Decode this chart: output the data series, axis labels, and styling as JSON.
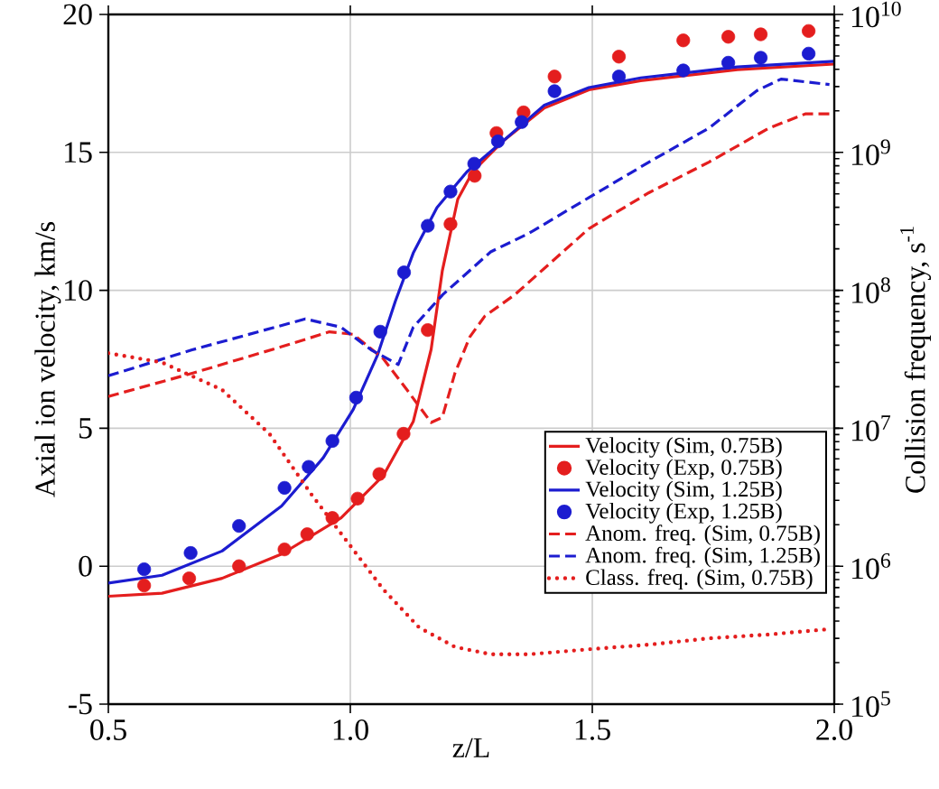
{
  "chart_data": {
    "type": "line",
    "xlabel": "z/L",
    "ylabel": "Axial ion velocity, km/s",
    "y2label": "Collision frequency, s$^{-1}$",
    "xlim": [
      0.5,
      2.0
    ],
    "ylim": [
      -5,
      20
    ],
    "y2lim": [
      100000,
      10000000000
    ],
    "log": "y2",
    "grid": true,
    "legend": "bottom right",
    "xticks": [
      0.5,
      {
        "value": 1,
        "label": "1.0"
      },
      1.5,
      {
        "value": 2,
        "label": "2.0"
      }
    ],
    "yticks": [
      -5,
      0,
      5,
      10,
      15,
      20
    ],
    "y2ticks": [
      {
        "value": 100000,
        "label": "10$^{5}$"
      },
      {
        "value": 1000000,
        "label": "10$^{6}$"
      },
      {
        "value": 10000000,
        "label": "10$^{7}$"
      },
      {
        "value": 100000000,
        "label": "10$^{8}$"
      },
      {
        "value": 1000000000,
        "label": "10$^{9}$"
      },
      {
        "value": 10000000000,
        "label": "10$^{10}$"
      }
    ],
    "series": [
      {
        "name": "Velocity (Sim, 0.75B)",
        "line_style": "solid",
        "color": "#e41e1e",
        "x": [
          0.5,
          0.611,
          0.735,
          0.858,
          0.981,
          1.068,
          1.13,
          1.167,
          1.19,
          1.222,
          1.253,
          1.315,
          1.4,
          1.493,
          1.6,
          1.8,
          2.0
        ],
        "values": [
          -1.09,
          -0.98,
          -0.44,
          0.44,
          1.75,
          3.28,
          5.24,
          7.86,
          10.7,
          13.3,
          14.3,
          15.4,
          16.6,
          17.27,
          17.6,
          18.0,
          18.2
        ]
      },
      {
        "name": "Velocity (Exp, 0.75B)",
        "type": "scatter",
        "marker": "circle",
        "color": "#e41e1e",
        "x": [
          0.574,
          0.667,
          0.77,
          0.864,
          0.911,
          0.963,
          1.015,
          1.06,
          1.11,
          1.16,
          1.207,
          1.257,
          1.302,
          1.358,
          1.422,
          1.555,
          1.688,
          1.781,
          1.848,
          1.947
        ],
        "values": [
          -0.7,
          -0.44,
          0.0,
          0.61,
          1.16,
          1.75,
          2.45,
          3.34,
          4.8,
          8.56,
          12.4,
          14.15,
          15.7,
          16.45,
          17.75,
          18.47,
          19.06,
          19.19,
          19.28,
          19.4
        ]
      },
      {
        "name": "Velocity (Sim, 1.25B)",
        "line_style": "solid",
        "color": "#1c1cd0",
        "x": [
          0.5,
          0.611,
          0.735,
          0.858,
          0.944,
          1.006,
          1.056,
          1.093,
          1.13,
          1.179,
          1.241,
          1.315,
          1.4,
          1.493,
          1.6,
          1.8,
          2.0
        ],
        "values": [
          -0.61,
          -0.33,
          0.55,
          2.18,
          3.93,
          5.68,
          7.64,
          9.6,
          11.35,
          13.0,
          14.3,
          15.4,
          16.7,
          17.35,
          17.7,
          18.1,
          18.3
        ]
      },
      {
        "name": "Velocity (Exp, 1.25B)",
        "type": "scatter",
        "marker": "circle",
        "color": "#1c1cd0",
        "x": [
          0.574,
          0.67,
          0.77,
          0.864,
          0.914,
          0.963,
          1.012,
          1.062,
          1.111,
          1.16,
          1.207,
          1.256,
          1.305,
          1.354,
          1.422,
          1.555,
          1.688,
          1.781,
          1.848,
          1.947
        ],
        "values": [
          -0.11,
          0.48,
          1.46,
          2.84,
          3.6,
          4.54,
          6.11,
          8.5,
          10.65,
          12.34,
          13.58,
          14.59,
          15.4,
          16.1,
          17.22,
          17.75,
          17.97,
          18.25,
          18.43,
          18.58
        ]
      },
      {
        "name": "Anom. freq. (Sim, 0.75B)",
        "axis": "y2",
        "line_style": "dashed",
        "color": "#e41e1e",
        "x": [
          0.5,
          0.673,
          0.858,
          0.957,
          1.006,
          1.068,
          1.117,
          1.167,
          1.19,
          1.216,
          1.247,
          1.278,
          1.34,
          1.493,
          1.617,
          1.741,
          1.865,
          1.94,
          1.99
        ],
        "values": [
          17000000.0,
          25000000.0,
          39000000.0,
          50000000.0,
          48000000.0,
          32000000.0,
          19000000.0,
          11000000.0,
          12000000.0,
          25000000.0,
          46000000.0,
          65000000.0,
          93000000.0,
          280000000.0,
          510000000.0,
          850000000.0,
          1500000000.0,
          1900000000.0,
          1900000000.0
        ]
      },
      {
        "name": "Anom. freq. (Sim, 1.25B)",
        "axis": "y2",
        "line_style": "dashed",
        "color": "#1c1cd0",
        "x": [
          0.5,
          0.673,
          0.907,
          0.981,
          1.043,
          1.099,
          1.13,
          1.191,
          1.29,
          1.37,
          1.493,
          1.617,
          1.741,
          1.84,
          1.89,
          1.99
        ],
        "values": [
          24000000.0,
          37000000.0,
          62000000.0,
          54000000.0,
          37000000.0,
          29000000.0,
          54000000.0,
          93000000.0,
          190000000.0,
          260000000.0,
          470000000.0,
          850000000.0,
          1500000000.0,
          2800000000.0,
          3400000000.0,
          3100000000.0
        ]
      },
      {
        "name": "Class. freq. (Sim, 0.75B)",
        "axis": "y2",
        "line_style": "dotted",
        "color": "#e41e1e",
        "x": [
          0.5,
          0.611,
          0.735,
          0.833,
          0.92,
          0.994,
          1.068,
          1.142,
          1.216,
          1.29,
          1.37,
          1.493,
          1.617,
          1.741,
          1.865,
          1.99
        ],
        "values": [
          35000000.0,
          30000000.0,
          19000000.0,
          9100000.0,
          3300000.0,
          1500000.0,
          680000.0,
          360000.0,
          260000.0,
          230000.0,
          230000.0,
          250000.0,
          270000.0,
          300000.0,
          320000.0,
          350000.0
        ]
      }
    ]
  }
}
